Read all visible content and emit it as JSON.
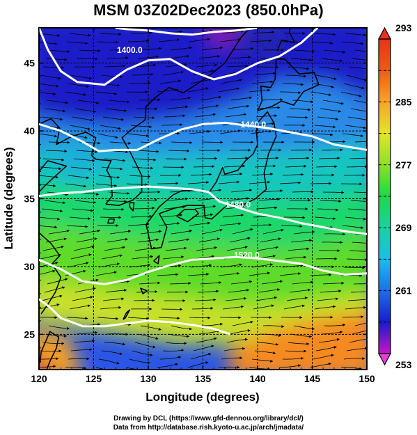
{
  "title": "MSM 03Z02Dec2023 (850.0hPa)",
  "chart_data": {
    "type": "map",
    "projection": "lat-lon",
    "x_axis": {
      "label": "Longitude (degrees)",
      "range": [
        120,
        150
      ],
      "ticks": [
        120,
        125,
        130,
        135,
        140,
        145,
        150
      ]
    },
    "y_axis": {
      "label": "Latitude  (degrees)",
      "range": [
        22.4,
        47.6
      ],
      "ticks": [
        25,
        30,
        35,
        40,
        45
      ]
    },
    "grid": true,
    "colorbar": {
      "position": "right",
      "range": [
        253,
        293
      ],
      "tick_labels": [
        "293",
        "285",
        "277",
        "269",
        "261",
        "253"
      ],
      "tick_values": [
        293,
        285,
        277,
        269,
        261,
        253
      ],
      "colors": [
        "#c218c2",
        "#1a1ad0",
        "#1f6ee8",
        "#19bfe8",
        "#16d3a0",
        "#1ed84a",
        "#8ee024",
        "#e2e628",
        "#f5a623",
        "#f05a1c",
        "#e8321a"
      ]
    },
    "contours": [
      {
        "label": "1400.0",
        "label_lon": 128.3,
        "label_lat": 45.8,
        "points": [
          [
            120,
            47.6
          ],
          [
            120.8,
            46
          ],
          [
            122,
            44.4
          ],
          [
            123.5,
            43.6
          ],
          [
            126,
            43.4
          ],
          [
            128,
            44.5
          ],
          [
            130,
            45.2
          ],
          [
            132,
            45.3
          ],
          [
            134,
            44.4
          ],
          [
            136,
            43.8
          ],
          [
            138,
            44.2
          ],
          [
            140,
            45
          ],
          [
            142,
            45.5
          ],
          [
            144,
            46.5
          ],
          [
            145.5,
            47.6
          ]
        ]
      },
      {
        "label": "1440.0",
        "label_lon": 139.6,
        "label_lat": 40.3,
        "points": [
          [
            120,
            40.5
          ],
          [
            122,
            40
          ],
          [
            124,
            39.2
          ],
          [
            125.5,
            38.5
          ],
          [
            127,
            38.6
          ],
          [
            129,
            38.6
          ],
          [
            131,
            39.4
          ],
          [
            133,
            40.1
          ],
          [
            135,
            40.5
          ],
          [
            137,
            40.6
          ],
          [
            139,
            40.4
          ],
          [
            141,
            40.2
          ],
          [
            143,
            39.9
          ],
          [
            145,
            39.6
          ],
          [
            147,
            39
          ],
          [
            150,
            38.6
          ]
        ]
      },
      {
        "label": "1480.0",
        "label_lon": 138.2,
        "label_lat": 34.4,
        "points": [
          [
            120,
            35.2
          ],
          [
            122,
            35.4
          ],
          [
            124,
            35.5
          ],
          [
            126,
            35.7
          ],
          [
            128,
            35.8
          ],
          [
            130,
            35.9
          ],
          [
            132,
            35.8
          ],
          [
            134,
            35.7
          ],
          [
            135.5,
            35.5
          ],
          [
            136.5,
            34.8
          ],
          [
            138,
            34.4
          ],
          [
            140,
            33.9
          ],
          [
            142,
            33.6
          ],
          [
            144,
            33.2
          ],
          [
            146,
            32.9
          ],
          [
            148,
            32.6
          ],
          [
            150,
            32.4
          ]
        ]
      },
      {
        "label": "1520.0",
        "label_lon": 139.0,
        "label_lat": 30.7,
        "points": [
          [
            120,
            30.5
          ],
          [
            122,
            29.8
          ],
          [
            124,
            28.9
          ],
          [
            126,
            28.7
          ],
          [
            128,
            29
          ],
          [
            130,
            29.6
          ],
          [
            132,
            30.1
          ],
          [
            134,
            30.5
          ],
          [
            136,
            30.6
          ],
          [
            138,
            30.7
          ],
          [
            140,
            30.6
          ],
          [
            142,
            30.4
          ],
          [
            144,
            30.2
          ],
          [
            146,
            29.7
          ],
          [
            148,
            29.4
          ],
          [
            150,
            29.5
          ]
        ]
      },
      {
        "label": "",
        "label_lon": 0,
        "label_lat": 0,
        "points": [
          [
            127,
            47.6
          ],
          [
            128,
            47.5
          ],
          [
            130,
            47.4
          ],
          [
            132,
            47.2
          ],
          [
            134,
            47.1
          ],
          [
            136,
            47.3
          ],
          [
            138,
            47.4
          ],
          [
            140,
            47.6
          ]
        ]
      },
      {
        "label": "",
        "label_lon": 0,
        "label_lat": 0,
        "points": [
          [
            120,
            27.6
          ],
          [
            121,
            27
          ],
          [
            122,
            26.2
          ],
          [
            124,
            25.6
          ],
          [
            126,
            25.6
          ],
          [
            128,
            25.8
          ],
          [
            130,
            26
          ],
          [
            132,
            25.9
          ],
          [
            134,
            25.7
          ],
          [
            136,
            25.4
          ],
          [
            137.5,
            25
          ]
        ]
      }
    ]
  },
  "credits": {
    "line1": "Drawing by DCL (https://www.gfd-dennou.org/library/dcl/)",
    "line2": "Data from http://database.rish.kyoto-u.ac.jp/arch/jmadata/"
  }
}
